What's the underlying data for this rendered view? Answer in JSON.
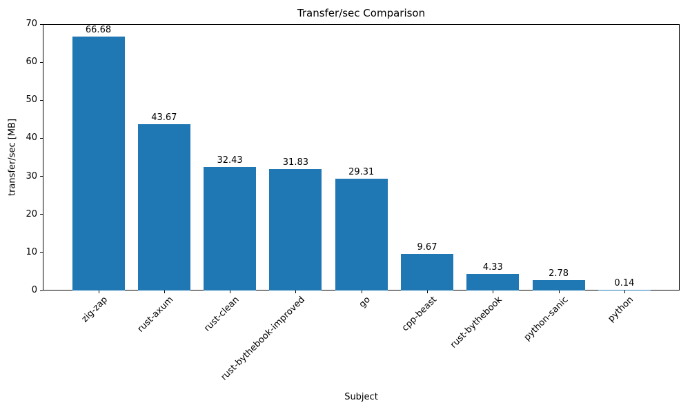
{
  "chart_data": {
    "type": "bar",
    "title": "Transfer/sec Comparison",
    "xlabel": "Subject",
    "ylabel": "transfer/sec [MB]",
    "categories": [
      "zig-zap",
      "rust-axum",
      "rust-clean",
      "rust-bythebook-improved",
      "go",
      "cpp-beast",
      "rust-bythebook",
      "python-sanic",
      "python"
    ],
    "values": [
      66.68,
      43.67,
      32.43,
      31.83,
      29.31,
      9.67,
      4.33,
      2.78,
      0.14
    ],
    "value_labels": [
      "66.68",
      "43.67",
      "32.43",
      "31.83",
      "29.31",
      "9.67",
      "4.33",
      "2.78",
      "0.14"
    ],
    "ylim": [
      0,
      70
    ],
    "yticks": [
      0,
      10,
      20,
      30,
      40,
      50,
      60,
      70
    ],
    "bar_color": "#1f77b4",
    "x_tick_rotation_deg": 45,
    "grid": false,
    "legend_position": "none"
  }
}
